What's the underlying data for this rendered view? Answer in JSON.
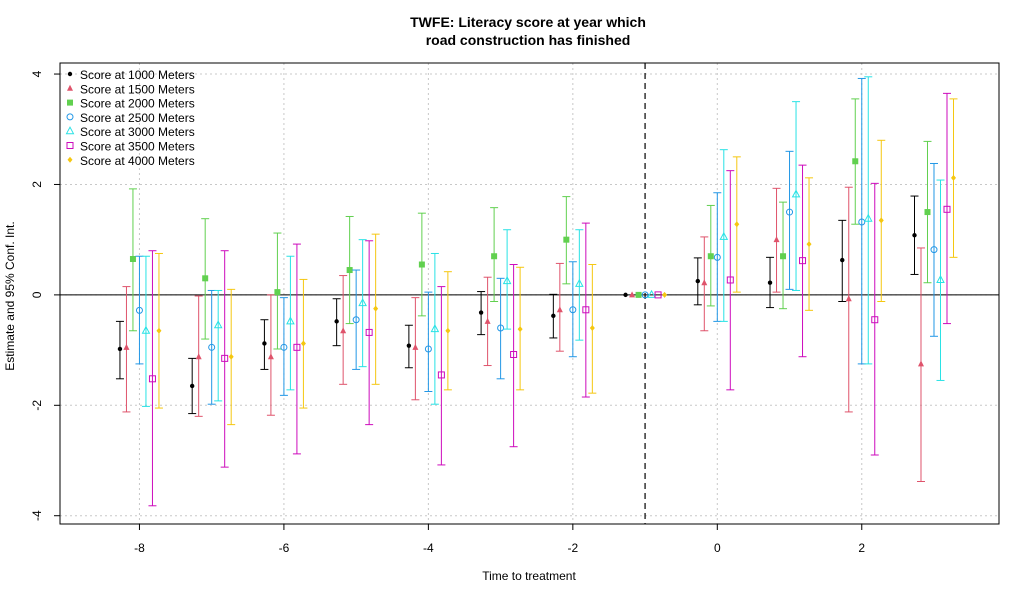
{
  "chart_data": {
    "type": "scatter",
    "title_lines": [
      "TWFE: Literacy score at year which",
      "road construction has finished"
    ],
    "xlabel": "Time to treatment",
    "ylabel": "Estimate and 95% Conf. Int.",
    "x_ticks": [
      "-8",
      "-6",
      "-4",
      "-2",
      "0",
      "2"
    ],
    "y_ticks": [
      "-4",
      "-2",
      "0",
      "2",
      "4"
    ],
    "xlim": [
      -9.1,
      3.9
    ],
    "ylim": [
      -4.15,
      4.2
    ],
    "x_periods": [
      -8,
      -7,
      -6,
      -5,
      -4,
      -3,
      -2,
      -1,
      0,
      1,
      2,
      3
    ],
    "reference_x": -1,
    "zero_line": true,
    "grid": true,
    "legend_position": "top-left",
    "series": [
      {
        "name": "Score at 1000 Meters",
        "color": "#000000",
        "marker": "dot",
        "est": [
          -0.98,
          -1.65,
          -0.88,
          -0.48,
          -0.92,
          -0.32,
          -0.38,
          0,
          0.25,
          0.22,
          0.63,
          1.08
        ],
        "lower": [
          -1.52,
          -2.15,
          -1.35,
          -0.92,
          -1.32,
          -0.72,
          -0.78,
          0,
          -0.18,
          -0.23,
          -0.12,
          0.37
        ],
        "upper": [
          -0.48,
          -1.15,
          -0.45,
          -0.07,
          -0.55,
          0.06,
          0.01,
          0,
          0.67,
          0.68,
          1.35,
          1.79
        ]
      },
      {
        "name": "Score at 1500 Meters",
        "color": "#DF536B",
        "marker": "triangle",
        "est": [
          -0.95,
          -1.12,
          -1.12,
          -0.65,
          -0.95,
          -0.48,
          -0.27,
          0,
          0.22,
          1.0,
          -0.07,
          -1.25
        ],
        "lower": [
          -2.12,
          -2.2,
          -2.18,
          -1.62,
          -1.9,
          -1.28,
          -1.02,
          0,
          -0.65,
          0.05,
          -2.12,
          -3.38
        ],
        "upper": [
          0.15,
          -0.02,
          0.0,
          0.35,
          -0.05,
          0.32,
          0.57,
          0,
          1.05,
          1.93,
          1.95,
          0.85
        ]
      },
      {
        "name": "Score at 2000 Meters",
        "color": "#61D04F",
        "marker": "square",
        "est": [
          0.65,
          0.3,
          0.05,
          0.45,
          0.55,
          0.7,
          1.0,
          0,
          0.7,
          0.7,
          2.42,
          1.5
        ],
        "lower": [
          -0.65,
          -0.8,
          -0.98,
          -0.52,
          -0.38,
          -0.12,
          0.2,
          0,
          -0.2,
          -0.25,
          1.28,
          0.22
        ],
        "upper": [
          1.92,
          1.38,
          1.12,
          1.42,
          1.48,
          1.58,
          1.78,
          0,
          1.62,
          1.68,
          3.55,
          2.78
        ]
      },
      {
        "name": "Score at 2500 Meters",
        "color": "#2297E6",
        "marker": "circle",
        "est": [
          -0.28,
          -0.95,
          -0.95,
          -0.45,
          -0.98,
          -0.6,
          -0.27,
          0,
          0.68,
          1.5,
          1.32,
          0.82
        ],
        "lower": [
          -1.25,
          -1.98,
          -1.82,
          -1.35,
          -1.75,
          -1.52,
          -1.12,
          0,
          -0.48,
          0.1,
          -1.25,
          -0.75
        ],
        "upper": [
          0.7,
          0.08,
          -0.05,
          0.45,
          0.05,
          0.3,
          0.6,
          0,
          1.85,
          2.6,
          3.92,
          2.38
        ]
      },
      {
        "name": "Score at 3000 Meters",
        "color": "#28E2E5",
        "marker": "triangle-open",
        "est": [
          -0.65,
          -0.55,
          -0.48,
          -0.15,
          -0.62,
          0.25,
          0.2,
          0,
          1.05,
          1.82,
          1.38,
          0.27
        ],
        "lower": [
          -2.02,
          -1.92,
          -1.72,
          -1.3,
          -1.98,
          -0.62,
          -0.82,
          0,
          -0.48,
          0.08,
          -1.25,
          -1.55
        ],
        "upper": [
          0.7,
          0.08,
          0.7,
          1.0,
          0.75,
          1.18,
          1.18,
          0,
          2.63,
          3.5,
          3.95,
          2.08
        ]
      },
      {
        "name": "Score at 3500 Meters",
        "color": "#CD0BBC",
        "marker": "square-open",
        "est": [
          -1.52,
          -1.15,
          -0.95,
          -0.68,
          -1.45,
          -1.08,
          -0.27,
          0,
          0.27,
          0.62,
          -0.45,
          1.55
        ],
        "lower": [
          -3.82,
          -3.12,
          -2.88,
          -2.35,
          -3.08,
          -2.75,
          -1.85,
          0,
          -1.72,
          -1.12,
          -2.9,
          -0.52
        ],
        "upper": [
          0.8,
          0.8,
          0.92,
          0.98,
          0.15,
          0.55,
          1.3,
          0,
          2.25,
          2.35,
          2.02,
          3.65
        ]
      },
      {
        "name": "Score at 4000 Meters",
        "color": "#F5C710",
        "marker": "diamond",
        "est": [
          -0.65,
          -1.12,
          -0.88,
          -0.25,
          -0.65,
          -0.62,
          -0.6,
          0,
          1.28,
          0.92,
          1.35,
          2.12
        ],
        "lower": [
          -2.05,
          -2.35,
          -2.05,
          -1.62,
          -1.72,
          -1.72,
          -1.78,
          0,
          0.05,
          -0.28,
          -0.12,
          0.68
        ],
        "upper": [
          0.75,
          0.1,
          0.28,
          1.1,
          0.42,
          0.5,
          0.55,
          0,
          2.5,
          2.12,
          2.8,
          3.55
        ]
      }
    ]
  }
}
